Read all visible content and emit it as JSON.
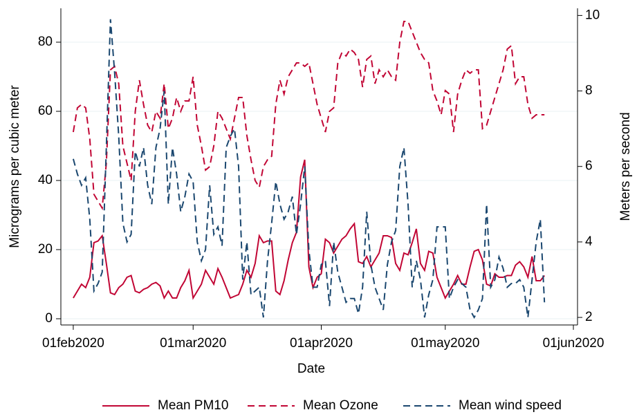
{
  "chart_data": {
    "type": "line",
    "x_label": "Date",
    "y_label": "Micrograms per cubic meter",
    "y2_label": "Meters per second",
    "x": [
      "2020-02-01",
      "2020-02-02",
      "2020-02-03",
      "2020-02-04",
      "2020-02-05",
      "2020-02-06",
      "2020-02-07",
      "2020-02-08",
      "2020-02-09",
      "2020-02-10",
      "2020-02-11",
      "2020-02-12",
      "2020-02-13",
      "2020-02-14",
      "2020-02-15",
      "2020-02-16",
      "2020-02-17",
      "2020-02-18",
      "2020-02-19",
      "2020-02-20",
      "2020-02-21",
      "2020-02-22",
      "2020-02-23",
      "2020-02-24",
      "2020-02-25",
      "2020-02-26",
      "2020-02-27",
      "2020-02-28",
      "2020-02-29",
      "2020-03-01",
      "2020-03-02",
      "2020-03-03",
      "2020-03-04",
      "2020-03-05",
      "2020-03-06",
      "2020-03-07",
      "2020-03-08",
      "2020-03-09",
      "2020-03-10",
      "2020-03-11",
      "2020-03-12",
      "2020-03-13",
      "2020-03-14",
      "2020-03-15",
      "2020-03-16",
      "2020-03-17",
      "2020-03-18",
      "2020-03-19",
      "2020-03-20",
      "2020-03-21",
      "2020-03-22",
      "2020-03-23",
      "2020-03-24",
      "2020-03-25",
      "2020-03-26",
      "2020-03-27",
      "2020-03-28",
      "2020-03-29",
      "2020-03-30",
      "2020-03-31",
      "2020-04-01",
      "2020-04-02",
      "2020-04-03",
      "2020-04-04",
      "2020-04-05",
      "2020-04-06",
      "2020-04-07",
      "2020-04-08",
      "2020-04-09",
      "2020-04-10",
      "2020-04-11",
      "2020-04-12",
      "2020-04-13",
      "2020-04-14",
      "2020-04-15",
      "2020-04-16",
      "2020-04-17",
      "2020-04-18",
      "2020-04-19",
      "2020-04-20",
      "2020-04-21",
      "2020-04-22",
      "2020-04-23",
      "2020-04-24",
      "2020-04-25",
      "2020-04-26",
      "2020-04-27",
      "2020-04-28",
      "2020-04-29",
      "2020-04-30",
      "2020-05-01",
      "2020-05-02",
      "2020-05-03",
      "2020-05-04",
      "2020-05-05",
      "2020-05-06",
      "2020-05-07",
      "2020-05-08",
      "2020-05-09",
      "2020-05-10",
      "2020-05-11",
      "2020-05-12",
      "2020-05-13",
      "2020-05-14",
      "2020-05-15",
      "2020-05-16",
      "2020-05-17",
      "2020-05-18",
      "2020-05-19",
      "2020-05-20",
      "2020-05-21",
      "2020-05-22",
      "2020-05-23",
      "2020-05-24",
      "2020-05-25"
    ],
    "series": [
      {
        "name": "Mean PM10",
        "color": "#c10534",
        "dash": "solid",
        "values": [
          6,
          8,
          10,
          9,
          12,
          22,
          22.5,
          24,
          16,
          7.5,
          7,
          9,
          10,
          12,
          12.5,
          8,
          7.5,
          8.5,
          9,
          10,
          10.5,
          9.5,
          6,
          8,
          6,
          6,
          9,
          11,
          14,
          6,
          8,
          10,
          14,
          12,
          10,
          14.5,
          12,
          9,
          6,
          6.5,
          7,
          10,
          14,
          12,
          16,
          24,
          22,
          22.5,
          22.5,
          8,
          7,
          11,
          17,
          22,
          25,
          41,
          46,
          15,
          9,
          12,
          13,
          23,
          22,
          19,
          21,
          23,
          24,
          26,
          27.5,
          16.5,
          16,
          18,
          15,
          17,
          19,
          24,
          24,
          23.5,
          16,
          14,
          19,
          18.5,
          22,
          26,
          16,
          14,
          19.5,
          19,
          12,
          9,
          6,
          8,
          10,
          12.5,
          10,
          10,
          15,
          19.5,
          20,
          17,
          10,
          9.5,
          13,
          12,
          12,
          12.5,
          12.5,
          15.5,
          16.5,
          15,
          12,
          18,
          11,
          11,
          12.5
        ]
      },
      {
        "name": "Mean Ozone",
        "color": "#c10534",
        "dash": "dashed",
        "values": [
          54,
          61,
          62,
          61,
          52,
          36,
          34,
          32,
          45,
          72,
          73,
          68,
          50,
          45,
          40,
          60,
          69,
          62,
          56,
          54,
          60,
          58,
          68,
          55,
          58,
          64,
          60,
          63,
          63,
          70,
          56,
          50,
          43,
          44,
          50,
          60,
          58,
          55,
          52,
          58,
          64,
          64,
          53,
          46,
          40,
          38,
          44,
          46,
          47,
          62,
          69,
          65,
          70,
          72,
          74,
          74,
          73,
          74,
          68,
          62,
          58,
          54,
          60,
          61,
          74,
          77,
          76,
          78,
          77,
          75,
          67,
          75,
          76,
          68,
          72,
          70,
          72,
          70,
          69,
          80,
          86,
          86,
          83,
          80,
          77,
          75,
          74,
          66,
          63,
          59,
          66,
          65,
          54,
          65,
          69,
          72,
          71,
          72,
          72,
          55,
          56,
          60,
          64,
          68,
          72,
          78,
          79,
          68,
          70,
          70,
          62,
          58,
          59,
          59,
          59
        ]
      },
      {
        "name": "Mean wind speed",
        "color": "#1a476f",
        "dash": "dashed",
        "axis": "y2",
        "values": [
          6.2,
          5.8,
          5.5,
          5.7,
          4.6,
          2.7,
          2.9,
          3.2,
          6.5,
          9.9,
          8.5,
          6.8,
          4.5,
          4.0,
          4.2,
          6.4,
          6.0,
          6.5,
          5.5,
          5.0,
          6.5,
          7.0,
          8.0,
          5.0,
          6.5,
          5.8,
          4.8,
          5.2,
          5.8,
          5.6,
          4.0,
          3.5,
          3.8,
          5.5,
          4.2,
          4.4,
          3.9,
          6.5,
          6.8,
          7.0,
          6.0,
          3.0,
          4.0,
          2.6,
          2.7,
          2.8,
          2.0,
          3.5,
          4.5,
          5.6,
          5.0,
          4.6,
          4.8,
          5.2,
          4.2,
          5.0,
          6.0,
          3.8,
          2.8,
          2.8,
          3.4,
          3.5,
          2.3,
          4.0,
          3.2,
          2.8,
          2.4,
          2.5,
          2.5,
          2.1,
          2.8,
          4.8,
          3.4,
          2.8,
          2.5,
          2.2,
          3.4,
          4.0,
          4.3,
          6.0,
          6.5,
          5.0,
          2.8,
          3.5,
          3.0,
          2.0,
          2.6,
          3.0,
          4.4,
          4.4,
          4.4,
          2.5,
          2.8,
          3.0,
          2.9,
          2.8,
          2.2,
          2.0,
          2.2,
          2.5,
          5.0,
          2.8,
          3.0,
          3.6,
          3.3,
          2.8,
          2.9,
          2.9,
          3.0,
          2.8,
          2.0,
          3.0,
          4.0,
          4.6,
          2.4
        ]
      }
    ],
    "xlim": [
      "2020-01-29",
      "2020-06-02"
    ],
    "xticks": [
      {
        "value": "2020-02-01",
        "label": "01feb2020"
      },
      {
        "value": "2020-03-01",
        "label": "01mar2020"
      },
      {
        "value": "2020-04-01",
        "label": "01apr2020"
      },
      {
        "value": "2020-05-01",
        "label": "01may2020"
      },
      {
        "value": "2020-06-01",
        "label": "01jun2020"
      }
    ],
    "ylim": [
      -1.8,
      89.8
    ],
    "yticks": [
      0,
      20,
      40,
      60,
      80
    ],
    "y2lim": [
      1.8,
      10.19
    ],
    "y2ticks": [
      2,
      4,
      6,
      8,
      10
    ],
    "grid": true,
    "legend": "bottom"
  }
}
